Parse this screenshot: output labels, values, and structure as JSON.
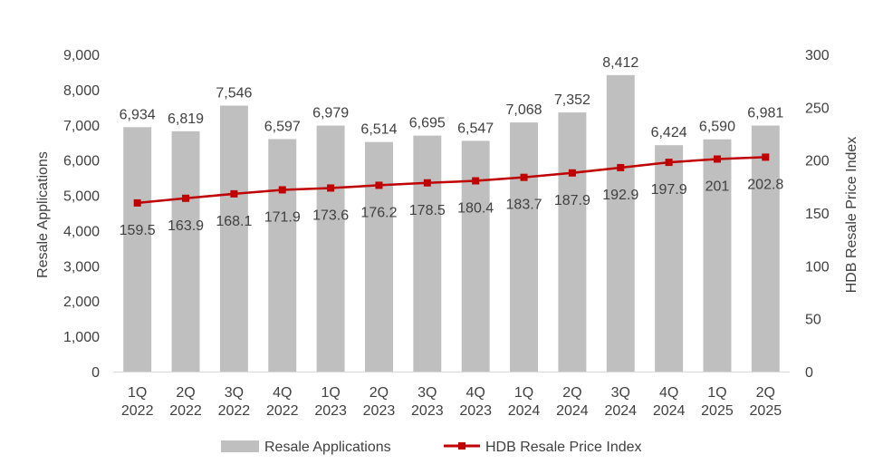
{
  "chart_data": {
    "type": "bar",
    "categories": [
      [
        "1Q",
        "2022"
      ],
      [
        "2Q",
        "2022"
      ],
      [
        "3Q",
        "2022"
      ],
      [
        "4Q",
        "2022"
      ],
      [
        "1Q",
        "2023"
      ],
      [
        "2Q",
        "2023"
      ],
      [
        "3Q",
        "2023"
      ],
      [
        "4Q",
        "2023"
      ],
      [
        "1Q",
        "2024"
      ],
      [
        "2Q",
        "2024"
      ],
      [
        "3Q",
        "2024"
      ],
      [
        "4Q",
        "2024"
      ],
      [
        "1Q",
        "2025"
      ],
      [
        "2Q",
        "2025"
      ]
    ],
    "series": [
      {
        "name": "Resale Applications",
        "type": "bar",
        "axis": "left",
        "color": "#bfbfbf",
        "values": [
          6934,
          6819,
          7546,
          6597,
          6979,
          6514,
          6695,
          6547,
          7068,
          7352,
          8412,
          6424,
          6590,
          6981
        ],
        "labels": [
          "6,934",
          "6,819",
          "7,546",
          "6,597",
          "6,979",
          "6,514",
          "6,695",
          "6,547",
          "7,068",
          "7,352",
          "8,412",
          "6,424",
          "6,590",
          "6,981"
        ]
      },
      {
        "name": "HDB Resale Price Index",
        "type": "line",
        "axis": "right",
        "color": "#c00000",
        "values": [
          159.5,
          163.9,
          168.1,
          171.9,
          173.6,
          176.2,
          178.5,
          180.4,
          183.7,
          187.9,
          192.9,
          197.9,
          201,
          202.8
        ],
        "labels": [
          "159.5",
          "163.9",
          "168.1",
          "171.9",
          "173.6",
          "176.2",
          "178.5",
          "180.4",
          "183.7",
          "187.9",
          "192.9",
          "197.9",
          "201",
          "202.8"
        ]
      }
    ],
    "ylabel": "Resale Applications",
    "y2label": "HDB Resale Price Index",
    "ylim": [
      0,
      9000
    ],
    "y2lim": [
      0,
      300
    ],
    "yticks": [
      "0",
      "1,000",
      "2,000",
      "3,000",
      "4,000",
      "5,000",
      "6,000",
      "7,000",
      "8,000",
      "9,000"
    ],
    "y2ticks": [
      "0",
      "50",
      "100",
      "150",
      "200",
      "250",
      "300"
    ],
    "grid": false,
    "legend_position": "bottom"
  }
}
